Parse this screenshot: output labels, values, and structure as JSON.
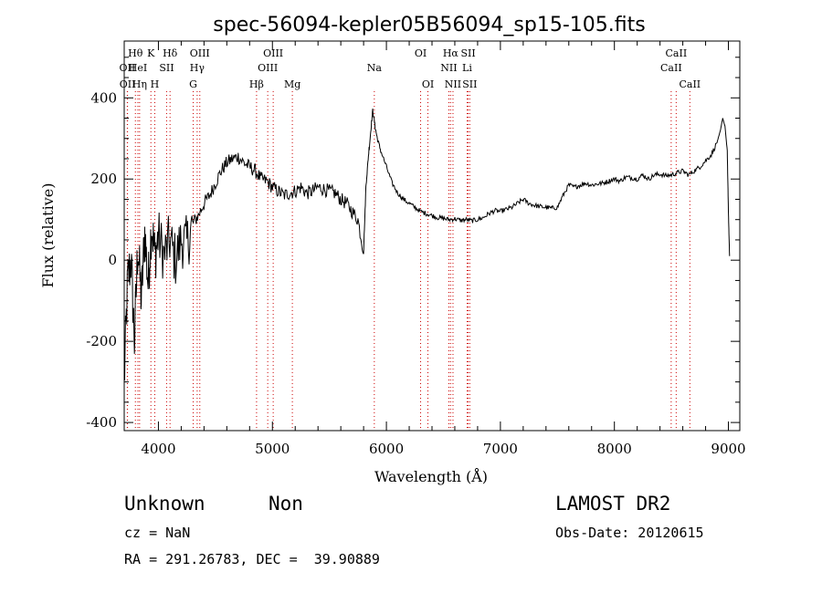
{
  "chart_data": {
    "type": "line",
    "title": "spec-56094-kepler05B56094_sp15-105.fits",
    "xlabel": "Wavelength (Å)",
    "ylabel": "Flux (relative)",
    "xlim": [
      3700,
      9100
    ],
    "ylim": [
      -420,
      540
    ],
    "xticks": [
      4000,
      5000,
      6000,
      7000,
      8000,
      9000
    ],
    "yticks": [
      -400,
      -200,
      0,
      200,
      400
    ],
    "spectral_lines": [
      {
        "name": "OII",
        "wavelength": 3727,
        "row": 2
      },
      {
        "name": "OII",
        "wavelength": 3729,
        "row": 3
      },
      {
        "name": "Hθ",
        "wavelength": 3798,
        "row": 1
      },
      {
        "name": "HeI",
        "wavelength": 3820,
        "row": 2
      },
      {
        "name": "Hη",
        "wavelength": 3835,
        "row": 3
      },
      {
        "name": "K",
        "wavelength": 3934,
        "row": 1
      },
      {
        "name": "SII",
        "wavelength": 4072,
        "row": 2
      },
      {
        "name": "H",
        "wavelength": 3968,
        "row": 3
      },
      {
        "name": "Hδ",
        "wavelength": 4102,
        "row": 1
      },
      {
        "name": "OIII",
        "wavelength": 4363,
        "row": 1
      },
      {
        "name": "Hγ",
        "wavelength": 4340,
        "row": 2
      },
      {
        "name": "G",
        "wavelength": 4305,
        "row": 3
      },
      {
        "name": "Hβ",
        "wavelength": 4861,
        "row": 3
      },
      {
        "name": "OIII",
        "wavelength": 5007,
        "row": 1
      },
      {
        "name": "OIII",
        "wavelength": 4959,
        "row": 2
      },
      {
        "name": "Mg",
        "wavelength": 5175,
        "row": 3
      },
      {
        "name": "Na",
        "wavelength": 5894,
        "row": 2
      },
      {
        "name": "OI",
        "wavelength": 6300,
        "row": 1
      },
      {
        "name": "OI",
        "wavelength": 6364,
        "row": 3
      },
      {
        "name": "Hα",
        "wavelength": 6563,
        "row": 1
      },
      {
        "name": "NII",
        "wavelength": 6548,
        "row": 2
      },
      {
        "name": "NII",
        "wavelength": 6584,
        "row": 3
      },
      {
        "name": "SII",
        "wavelength": 6717,
        "row": 1
      },
      {
        "name": "Li",
        "wavelength": 6708,
        "row": 2
      },
      {
        "name": "SII",
        "wavelength": 6731,
        "row": 3
      },
      {
        "name": "CaII",
        "wavelength": 8542,
        "row": 1
      },
      {
        "name": "CaII",
        "wavelength": 8498,
        "row": 2
      },
      {
        "name": "CaII",
        "wavelength": 8662,
        "row": 3
      }
    ],
    "series": [
      {
        "x": [
          3700,
          3730,
          3760,
          3790,
          3820,
          3850,
          3880,
          3910,
          3940,
          3970,
          4000,
          4050,
          4100,
          4150,
          4200,
          4250,
          4300,
          4350,
          4400,
          4450,
          4500,
          4550,
          4600,
          4650,
          4700,
          4750,
          4800,
          4850,
          4900,
          4950,
          5000,
          5050,
          5100,
          5150,
          5200,
          5250,
          5300,
          5350,
          5400,
          5450,
          5500,
          5550,
          5600,
          5650,
          5700,
          5750,
          5800,
          5820,
          5840,
          5860,
          5880,
          5900,
          5920,
          5950,
          6000,
          6050,
          6100,
          6150,
          6200,
          6250,
          6300,
          6350,
          6400,
          6450,
          6500,
          6550,
          6600,
          6650,
          6700,
          6750,
          6800,
          6850,
          6900,
          6950,
          7000,
          7050,
          7100,
          7150,
          7200,
          7250,
          7300,
          7350,
          7400,
          7450,
          7500,
          7550,
          7600,
          7650,
          7700,
          7750,
          7800,
          7850,
          7900,
          7950,
          8000,
          8050,
          8100,
          8150,
          8200,
          8250,
          8300,
          8350,
          8400,
          8450,
          8500,
          8550,
          8600,
          8650,
          8700,
          8750,
          8800,
          8850,
          8900,
          8930,
          8950,
          8970,
          8990,
          9000,
          9010
        ],
        "values": [
          -300,
          -50,
          0,
          -200,
          40,
          -100,
          70,
          -60,
          90,
          10,
          60,
          10,
          50,
          0,
          50,
          40,
          90,
          110,
          140,
          160,
          190,
          220,
          240,
          250,
          255,
          240,
          230,
          220,
          200,
          195,
          180,
          170,
          160,
          165,
          170,
          180,
          165,
          170,
          180,
          175,
          170,
          165,
          150,
          140,
          120,
          100,
          20,
          180,
          250,
          310,
          370,
          330,
          300,
          270,
          230,
          190,
          165,
          150,
          140,
          130,
          120,
          115,
          110,
          105,
          103,
          100,
          102,
          98,
          100,
          97,
          100,
          105,
          115,
          122,
          120,
          125,
          130,
          140,
          150,
          140,
          135,
          132,
          130,
          128,
          130,
          160,
          185,
          180,
          185,
          190,
          185,
          188,
          190,
          195,
          200,
          195,
          205,
          203,
          200,
          210,
          200,
          210,
          212,
          208,
          210,
          215,
          220,
          210,
          220,
          230,
          245,
          260,
          290,
          320,
          350,
          330,
          270,
          120,
          10
        ]
      }
    ]
  },
  "info": {
    "class_label": "Unknown",
    "subclass_label": "Non",
    "survey_label": "LAMOST DR2",
    "cz_text": "cz = NaN",
    "obs_date_text": "Obs-Date: 20120615",
    "radec_text": "RA = 291.26783, DEC =  39.90889"
  }
}
